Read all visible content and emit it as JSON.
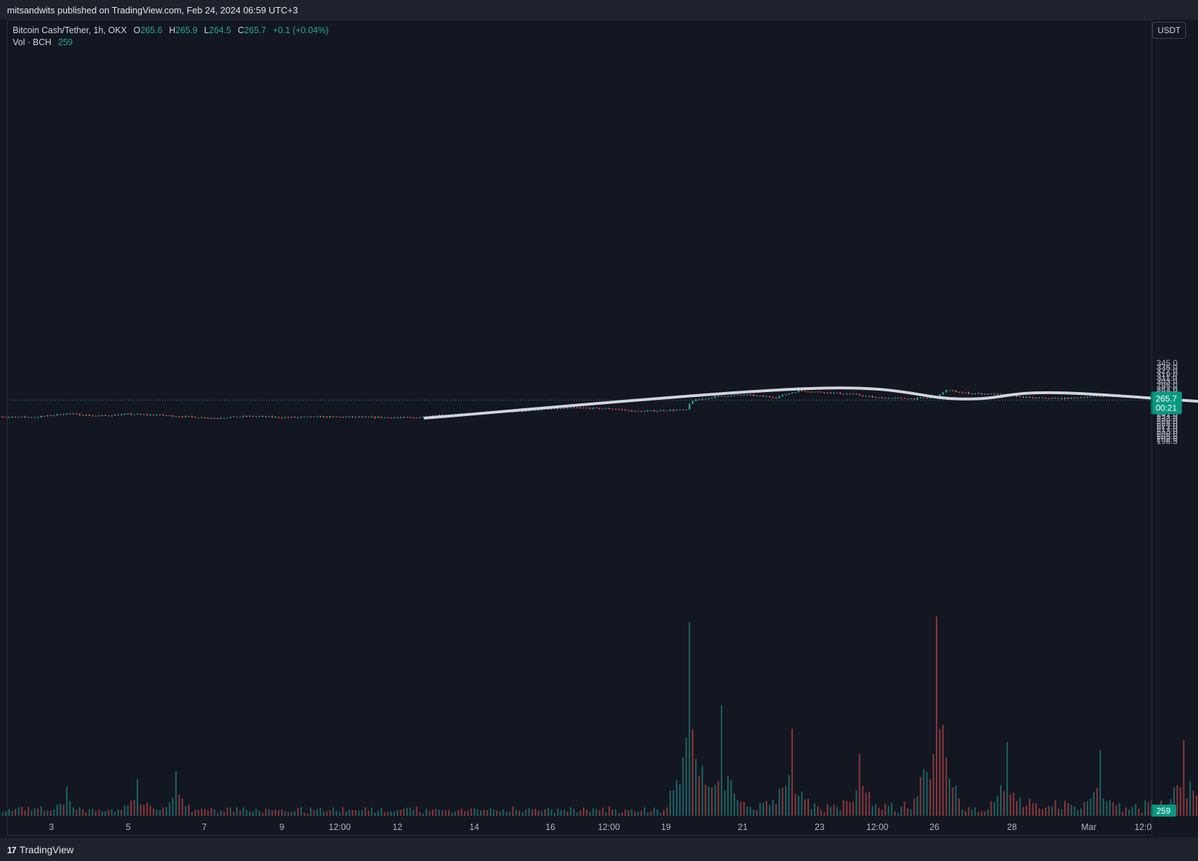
{
  "header": {
    "published_text": "mitsandwits published on TradingView.com, Feb 24, 2024 06:59 UTC+3"
  },
  "footer": {
    "brand": "TradingView",
    "logo_text": "17"
  },
  "legend": {
    "symbol": "Bitcoin Cash/Tether, 1h, OKX",
    "open_label": "O",
    "open": "265.6",
    "high_label": "H",
    "high": "265.9",
    "low_label": "L",
    "low": "264.5",
    "close_label": "C",
    "close": "265.7",
    "change": "+0.1 (+0.04%)",
    "vol_label": "Vol · BCH",
    "vol_value": "259"
  },
  "unit_button": "USDT",
  "colors": {
    "up": "#26a69a",
    "down": "#ef5350",
    "background": "#131722",
    "projection": "#d1d4dc",
    "badge": "#089981"
  },
  "price_badge": {
    "price": "265.7",
    "countdown": "00:21"
  },
  "volume_badge": "259",
  "chart_data": {
    "type": "candlestick",
    "timeframe": "1h",
    "scale": "log",
    "last_price": 265.7,
    "price_axis_labels": [
      "345.0",
      "335.0",
      "327.0",
      "319.0",
      "311.0",
      "303.0",
      "295.0",
      "287.0",
      "282.0",
      "277.0",
      "272.0",
      "267.0",
      "261.0",
      "255.0",
      "249.0",
      "245.0",
      "241.0",
      "237.0",
      "233.0",
      "229.0",
      "225.0",
      "221.0",
      "217.0",
      "213.0",
      "209.0",
      "205.5",
      "202.0",
      "198.5"
    ],
    "time_axis_labels": [
      "3",
      "5",
      "7",
      "9",
      "12:00",
      "12",
      "14",
      "16",
      "12:00",
      "19",
      "21",
      "23",
      "12:00",
      "26",
      "28",
      "Mar",
      "12:0"
    ],
    "price_path": [
      {
        "day": 2.0,
        "price": 237.5
      },
      {
        "day": 2.4,
        "price": 236.0
      },
      {
        "day": 2.8,
        "price": 235.5
      },
      {
        "day": 3.2,
        "price": 241.5
      },
      {
        "day": 3.6,
        "price": 237.5
      },
      {
        "day": 4.0,
        "price": 240.5
      },
      {
        "day": 4.4,
        "price": 239.0
      },
      {
        "day": 4.7,
        "price": 236.5
      },
      {
        "day": 5.1,
        "price": 234.0
      },
      {
        "day": 5.6,
        "price": 237.0
      },
      {
        "day": 6.0,
        "price": 235.0
      },
      {
        "day": 6.5,
        "price": 236.0
      },
      {
        "day": 7.0,
        "price": 235.5
      },
      {
        "day": 7.7,
        "price": 234.5
      },
      {
        "day": 8.0,
        "price": 239.0
      },
      {
        "day": 8.5,
        "price": 241.0
      },
      {
        "day": 9.0,
        "price": 245.0
      },
      {
        "day": 9.4,
        "price": 249.0
      },
      {
        "day": 9.8,
        "price": 251.5
      },
      {
        "day": 10.3,
        "price": 250.0
      },
      {
        "day": 10.6,
        "price": 245.0
      },
      {
        "day": 11.0,
        "price": 247.5
      },
      {
        "day": 11.25,
        "price": 247.5
      },
      {
        "day": 11.3,
        "price": 264.0
      },
      {
        "day": 11.6,
        "price": 272.0
      },
      {
        "day": 12.0,
        "price": 276.0
      },
      {
        "day": 12.4,
        "price": 271.0
      },
      {
        "day": 12.7,
        "price": 284.0
      },
      {
        "day": 13.0,
        "price": 281.0
      },
      {
        "day": 13.4,
        "price": 277.0
      },
      {
        "day": 13.7,
        "price": 270.5
      },
      {
        "day": 14.2,
        "price": 268.5
      },
      {
        "day": 14.5,
        "price": 271.0
      },
      {
        "day": 14.6,
        "price": 285.0
      },
      {
        "day": 14.9,
        "price": 279.0
      },
      {
        "day": 15.3,
        "price": 277.0
      },
      {
        "day": 15.7,
        "price": 270.0
      },
      {
        "day": 16.2,
        "price": 269.0
      },
      {
        "day": 16.6,
        "price": 274.0
      },
      {
        "day": 17.0,
        "price": 273.0
      },
      {
        "day": 17.4,
        "price": 270.0
      },
      {
        "day": 17.8,
        "price": 263.0
      },
      {
        "day": 18.2,
        "price": 268.0
      },
      {
        "day": 18.6,
        "price": 270.0
      },
      {
        "day": 19.0,
        "price": 269.5
      },
      {
        "day": 19.5,
        "price": 271.0
      },
      {
        "day": 20.0,
        "price": 270.5
      },
      {
        "day": 20.5,
        "price": 272.0
      },
      {
        "day": 20.8,
        "price": 266.0
      },
      {
        "day": 21.2,
        "price": 263.0
      },
      {
        "day": 21.6,
        "price": 260.0
      },
      {
        "day": 21.9,
        "price": 259.5
      },
      {
        "day": 22.3,
        "price": 264.0
      },
      {
        "day": 22.7,
        "price": 266.0
      },
      {
        "day": 23.0,
        "price": 262.0
      },
      {
        "day": 23.4,
        "price": 264.0
      },
      {
        "day": 23.8,
        "price": 265.7
      }
    ],
    "volume_spikes": [
      {
        "day": 3.2,
        "rel": 0.15
      },
      {
        "day": 4.1,
        "rel": 0.19
      },
      {
        "day": 4.6,
        "rel": 0.23
      },
      {
        "day": 11.3,
        "rel": 1.0
      },
      {
        "day": 11.7,
        "rel": 0.57
      },
      {
        "day": 12.6,
        "rel": 0.45
      },
      {
        "day": 13.5,
        "rel": 0.32
      },
      {
        "day": 14.5,
        "rel": 1.03
      },
      {
        "day": 15.4,
        "rel": 0.38
      },
      {
        "day": 16.6,
        "rel": 0.34
      },
      {
        "day": 17.7,
        "rel": 0.39
      },
      {
        "day": 20.8,
        "rel": 0.45
      },
      {
        "day": 23.8,
        "rel": 0.13
      }
    ],
    "projection_path": [
      {
        "day": 7.85,
        "price": 234.0
      },
      {
        "day": 12.85,
        "price": 288.5
      },
      {
        "day": 14.8,
        "price": 268.0
      },
      {
        "day": 16.05,
        "price": 280.0
      },
      {
        "day": 18.7,
        "price": 258.0
      },
      {
        "day": 20.1,
        "price": 271.0
      },
      {
        "day": 21.9,
        "price": 257.0
      },
      {
        "day": 23.0,
        "price": 268.5
      },
      {
        "day": 24.7,
        "price": 261.0
      },
      {
        "day": 25.5,
        "price": 268.5
      },
      {
        "day": 25.9,
        "price": 267.5
      }
    ]
  }
}
